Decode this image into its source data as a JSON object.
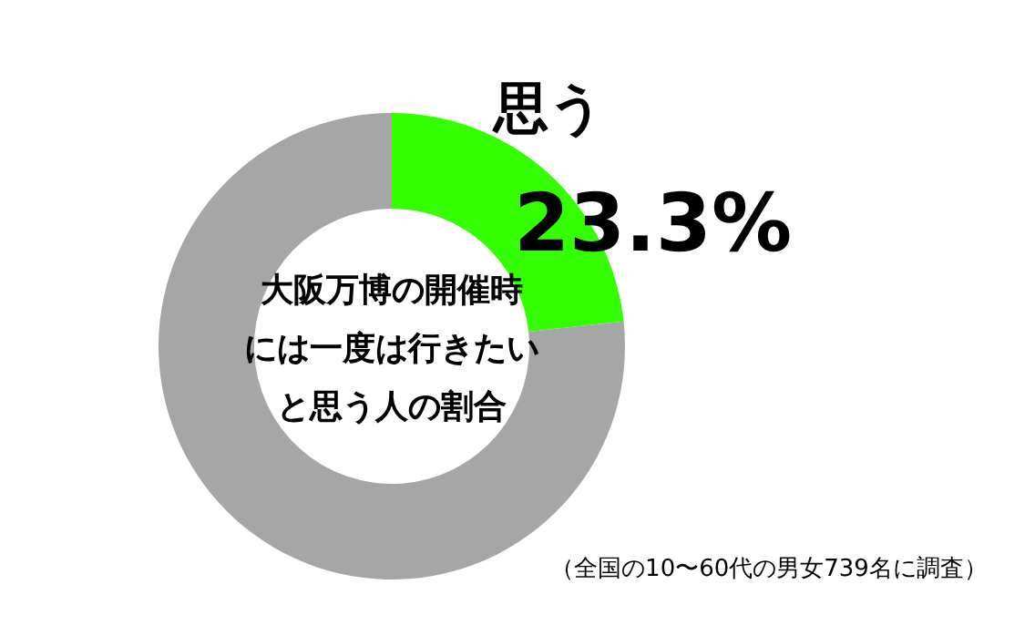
{
  "chart_data": {
    "type": "donut",
    "title": "大阪万博の開催時には一度は行きたいと思う人の割合",
    "categories": [
      "思う",
      null
    ],
    "values": [
      23.3,
      76.7
    ],
    "colors": [
      "#33ff00",
      "#a6a6a6"
    ],
    "value_labels": [
      "23.3%",
      null
    ],
    "annotations": [
      "（全国の10〜60代の男女739名に調査）"
    ]
  }
}
